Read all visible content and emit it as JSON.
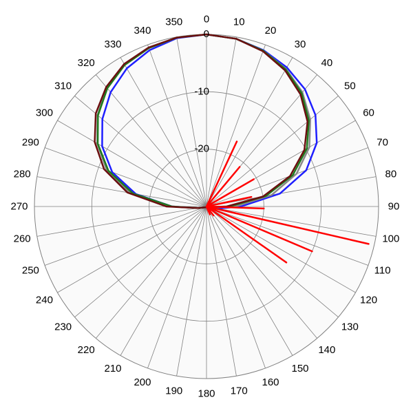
{
  "chart_data": {
    "type": "polar",
    "title": "",
    "angular_unit": "degrees",
    "angular_direction": "clockwise",
    "zero_at": "top",
    "angle_ticks": [
      "0",
      "10",
      "20",
      "30",
      "40",
      "50",
      "60",
      "70",
      "80",
      "90",
      "100",
      "110",
      "120",
      "130",
      "140",
      "150",
      "160",
      "170",
      "180",
      "190",
      "200",
      "210",
      "220",
      "230",
      "240",
      "250",
      "260",
      "270",
      "280",
      "290",
      "300",
      "310",
      "320",
      "330",
      "340",
      "350"
    ],
    "radial_ticks": [
      "0",
      "-10",
      "-20"
    ],
    "radial_range": [
      -30,
      0
    ],
    "grid": true,
    "background": "#fafafa",
    "series": [
      {
        "color": "#1f1fff",
        "points": [
          [
            0,
            0
          ],
          [
            10,
            -0.3
          ],
          [
            20,
            -1
          ],
          [
            30,
            -2
          ],
          [
            40,
            -3.3
          ],
          [
            50,
            -5.2
          ],
          [
            60,
            -7.8
          ],
          [
            70,
            -11.5
          ],
          [
            80,
            -17
          ],
          [
            90,
            -24
          ],
          [
            100,
            -28
          ],
          [
            110,
            -29.5
          ],
          [
            250,
            -29.5
          ],
          [
            260,
            -28.5
          ],
          [
            270,
            -24
          ],
          [
            280,
            -17.5
          ],
          [
            290,
            -12.5
          ],
          [
            300,
            -9
          ],
          [
            310,
            -6.3
          ],
          [
            320,
            -4
          ],
          [
            330,
            -2.2
          ],
          [
            340,
            -1
          ],
          [
            350,
            -0.2
          ]
        ]
      },
      {
        "color": "#888888",
        "points": [
          [
            0,
            0
          ],
          [
            10,
            -0.3
          ],
          [
            20,
            -1.1
          ],
          [
            30,
            -2.3
          ],
          [
            40,
            -4
          ],
          [
            50,
            -6.4
          ],
          [
            60,
            -9.3
          ],
          [
            70,
            -13.3
          ],
          [
            80,
            -18.5
          ],
          [
            90,
            -25
          ],
          [
            100,
            -29
          ],
          [
            250,
            -29.5
          ],
          [
            260,
            -28.5
          ],
          [
            270,
            -23.5
          ],
          [
            280,
            -16.5
          ],
          [
            290,
            -11.5
          ],
          [
            300,
            -8
          ],
          [
            310,
            -5.2
          ],
          [
            320,
            -3
          ],
          [
            330,
            -1.5
          ],
          [
            340,
            -0.6
          ],
          [
            350,
            -0.1
          ]
        ]
      },
      {
        "color": "#1e7a1e",
        "points": [
          [
            0,
            0
          ],
          [
            10,
            -0.3
          ],
          [
            20,
            -1.1
          ],
          [
            30,
            -2.4
          ],
          [
            40,
            -4.2
          ],
          [
            50,
            -6.7
          ],
          [
            60,
            -9.8
          ],
          [
            70,
            -14
          ],
          [
            80,
            -19.5
          ],
          [
            90,
            -26
          ],
          [
            100,
            -29.5
          ],
          [
            250,
            -29.5
          ],
          [
            260,
            -28.5
          ],
          [
            270,
            -24
          ],
          [
            280,
            -17
          ],
          [
            290,
            -11.8
          ],
          [
            300,
            -8.1
          ],
          [
            310,
            -5.3
          ],
          [
            320,
            -3.1
          ],
          [
            330,
            -1.5
          ],
          [
            340,
            -0.6
          ],
          [
            350,
            -0.1
          ]
        ]
      },
      {
        "color": "#6b0f0f",
        "points": [
          [
            0,
            0
          ],
          [
            10,
            -0.3
          ],
          [
            20,
            -1.2
          ],
          [
            30,
            -2.6
          ],
          [
            40,
            -4.5
          ],
          [
            50,
            -7
          ],
          [
            60,
            -10.3
          ],
          [
            70,
            -14.5
          ],
          [
            80,
            -20
          ],
          [
            90,
            -26.5
          ],
          [
            100,
            -29.5
          ],
          [
            250,
            -29.5
          ],
          [
            260,
            -28.5
          ],
          [
            270,
            -23
          ],
          [
            280,
            -16
          ],
          [
            290,
            -11
          ],
          [
            300,
            -7.5
          ],
          [
            310,
            -4.8
          ],
          [
            320,
            -2.8
          ],
          [
            330,
            -1.3
          ],
          [
            340,
            -0.5
          ],
          [
            350,
            -0.1
          ]
        ]
      },
      {
        "color": "#ff0000",
        "points": [
          [
            180,
            -30
          ],
          [
            22,
            -30
          ],
          [
            25,
            -17.5
          ],
          [
            28,
            -30
          ],
          [
            36,
            -30
          ],
          [
            40,
            -21
          ],
          [
            44,
            -30
          ],
          [
            55,
            -30
          ],
          [
            60,
            -20.5
          ],
          [
            65,
            -30
          ],
          [
            74,
            -30
          ],
          [
            78,
            -22
          ],
          [
            82,
            -30
          ],
          [
            88,
            -30
          ],
          [
            92,
            -20
          ],
          [
            96,
            -30
          ],
          [
            100,
            -30
          ],
          [
            103,
            -1
          ],
          [
            105,
            -30
          ],
          [
            110,
            -30
          ],
          [
            113,
            -10
          ],
          [
            116,
            -30
          ],
          [
            122,
            -30
          ],
          [
            125,
            -13
          ],
          [
            128,
            -30
          ],
          [
            140,
            -30
          ],
          [
            142,
            -28
          ],
          [
            144,
            -30
          ],
          [
            155,
            -30
          ],
          [
            157,
            -28.5
          ],
          [
            159,
            -30
          ],
          [
            180,
            -30
          ]
        ]
      }
    ]
  }
}
